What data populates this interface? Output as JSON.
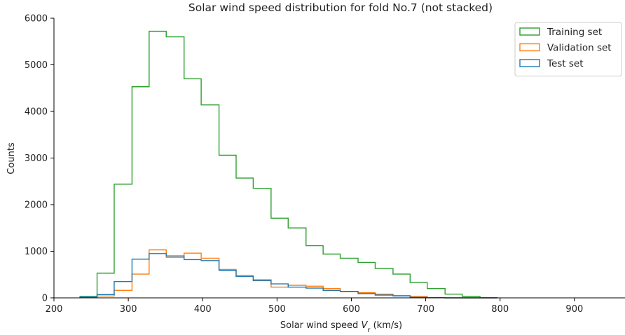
{
  "chart_data": {
    "type": "histogram",
    "title": "Solar wind speed distribution for fold No.7 (not stacked)",
    "xlabel_prefix": "Solar wind speed ",
    "xlabel_var": "V",
    "xlabel_sub": "r",
    "xlabel_suffix": " (km/s)",
    "ylabel": "Counts",
    "xlim": [
      200,
      968
    ],
    "ylim": [
      0,
      6000
    ],
    "xticks": [
      200,
      300,
      400,
      500,
      600,
      700,
      800,
      900
    ],
    "yticks": [
      0,
      1000,
      2000,
      3000,
      4000,
      5000,
      6000
    ],
    "grid": false,
    "legend_position": "top-right",
    "bin_edges": [
      235,
      258,
      281,
      305,
      328,
      351,
      375,
      398,
      422,
      445,
      468,
      492,
      515,
      539,
      562,
      585,
      609,
      632,
      656,
      679,
      702,
      726,
      749,
      773,
      796
    ],
    "series": [
      {
        "name": "Training set",
        "color": "#2ca02c",
        "values": [
          30,
          530,
          2440,
          4530,
          5720,
          5600,
          4700,
          4140,
          3060,
          2570,
          2350,
          1710,
          1500,
          1120,
          940,
          850,
          760,
          630,
          510,
          330,
          200,
          80,
          30,
          5
        ]
      },
      {
        "name": "Validation set",
        "color": "#ff7f0e",
        "values": [
          5,
          40,
          160,
          510,
          1030,
          870,
          960,
          850,
          610,
          480,
          390,
          230,
          270,
          250,
          200,
          130,
          110,
          80,
          50,
          30,
          5,
          0,
          0,
          0
        ]
      },
      {
        "name": "Test set",
        "color": "#1f77b4",
        "values": [
          20,
          70,
          350,
          830,
          950,
          900,
          820,
          800,
          590,
          460,
          370,
          300,
          230,
          210,
          160,
          140,
          90,
          60,
          40,
          10,
          5,
          0,
          0,
          0
        ]
      }
    ]
  }
}
